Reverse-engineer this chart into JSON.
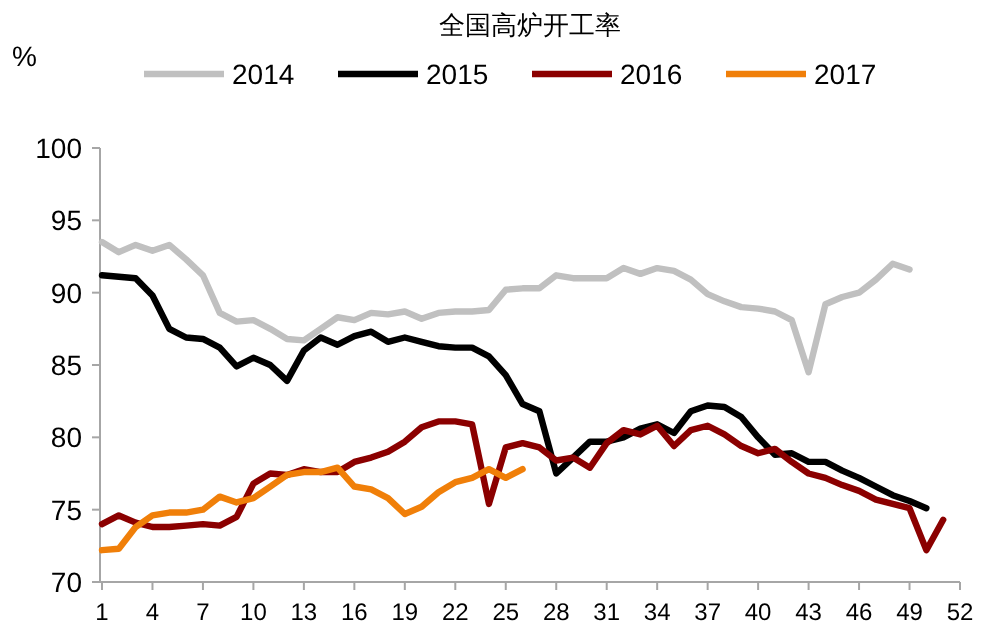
{
  "chart_data": {
    "type": "line",
    "title": "全国高炉开工率",
    "ylabel": "%",
    "legend": "top",
    "grid": false,
    "marker": "none",
    "line_style": "solid",
    "xlim": [
      1,
      52
    ],
    "xticks": [
      1,
      4,
      7,
      10,
      13,
      16,
      19,
      22,
      25,
      28,
      31,
      34,
      37,
      40,
      43,
      46,
      49,
      52
    ],
    "ylim": [
      70,
      100
    ],
    "yticks": [
      70,
      75,
      80,
      85,
      90,
      95,
      100
    ],
    "x": [
      1,
      2,
      3,
      4,
      5,
      6,
      7,
      8,
      9,
      10,
      11,
      12,
      13,
      14,
      15,
      16,
      17,
      18,
      19,
      20,
      21,
      22,
      23,
      24,
      25,
      26,
      27,
      28,
      29,
      30,
      31,
      32,
      33,
      34,
      35,
      36,
      37,
      38,
      39,
      40,
      41,
      42,
      43,
      44,
      45,
      46,
      47,
      48,
      49,
      50,
      51
    ],
    "series": [
      {
        "name": "2014",
        "color": "#c0c0c0",
        "values": [
          93.5,
          92.8,
          93.3,
          92.9,
          93.3,
          92.3,
          91.2,
          88.6,
          88.0,
          88.1,
          87.5,
          86.8,
          86.7,
          87.5,
          88.3,
          88.1,
          88.6,
          88.5,
          88.7,
          88.2,
          88.6,
          88.7,
          88.7,
          88.8,
          90.2,
          90.3,
          90.3,
          91.2,
          91.0,
          91.0,
          91.0,
          91.7,
          91.3,
          91.7,
          91.5,
          90.9,
          89.9,
          89.4,
          89.0,
          88.9,
          88.7,
          88.1,
          84.5,
          89.2,
          89.7,
          90.0,
          90.9,
          92.0,
          91.6,
          null,
          null
        ]
      },
      {
        "name": "2015",
        "color": "#000000",
        "values": [
          91.2,
          91.1,
          91.0,
          89.8,
          87.5,
          86.9,
          86.8,
          86.2,
          84.9,
          85.5,
          85.0,
          83.9,
          86.0,
          86.9,
          86.4,
          87.0,
          87.3,
          86.6,
          86.9,
          86.6,
          86.3,
          86.2,
          86.2,
          85.6,
          84.3,
          82.3,
          81.8,
          77.5,
          78.6,
          79.7,
          79.7,
          80.0,
          80.6,
          80.9,
          80.3,
          81.8,
          82.2,
          82.1,
          81.4,
          80.0,
          78.8,
          78.9,
          78.3,
          78.3,
          77.7,
          77.2,
          76.6,
          76.0,
          75.6,
          75.1,
          null
        ]
      },
      {
        "name": "2016",
        "color": "#8b0000",
        "values": [
          74.0,
          74.6,
          74.1,
          73.8,
          73.8,
          73.9,
          74.0,
          73.9,
          74.5,
          76.8,
          77.5,
          77.4,
          77.8,
          77.6,
          77.6,
          78.3,
          78.6,
          79.0,
          79.7,
          80.7,
          81.1,
          81.1,
          80.9,
          75.4,
          79.3,
          79.6,
          79.3,
          78.4,
          78.6,
          77.9,
          79.6,
          80.5,
          80.2,
          80.8,
          79.4,
          80.5,
          80.8,
          80.2,
          79.4,
          78.9,
          79.2,
          78.3,
          77.5,
          77.2,
          76.7,
          76.3,
          75.7,
          75.4,
          75.1,
          72.2,
          74.3
        ]
      },
      {
        "name": "2017",
        "color": "#f07f09",
        "values": [
          72.2,
          72.3,
          73.8,
          74.6,
          74.8,
          74.8,
          75.0,
          75.9,
          75.5,
          75.8,
          76.6,
          77.4,
          77.6,
          77.6,
          77.9,
          76.6,
          76.4,
          75.8,
          74.7,
          75.2,
          76.2,
          76.9,
          77.2,
          77.8,
          77.2,
          77.8,
          null,
          null,
          null,
          null,
          null,
          null,
          null,
          null,
          null,
          null,
          null,
          null,
          null,
          null,
          null,
          null,
          null,
          null,
          null,
          null,
          null,
          null,
          null,
          null,
          null
        ]
      }
    ]
  }
}
